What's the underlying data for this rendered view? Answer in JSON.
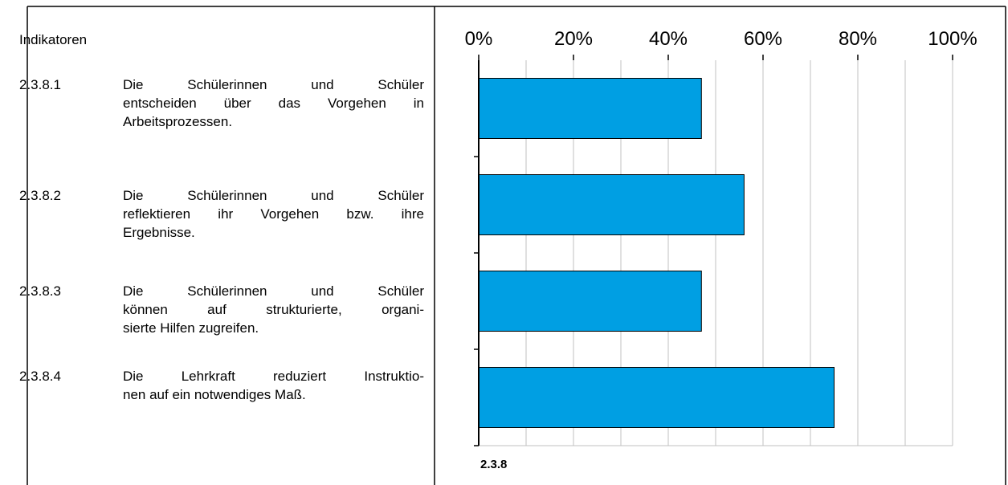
{
  "header": {
    "title": "Indikatoren"
  },
  "indicators": [
    {
      "number": "2.3.8.1",
      "lines": [
        "Die Schülerinnen und Schüler",
        "entscheiden über das Vorgehen in",
        "Arbeitsprozessen."
      ]
    },
    {
      "number": "2.3.8.2",
      "lines": [
        "Die Schülerinnen und Schüler",
        "reflektieren ihr Vorgehen bzw. ihre",
        "Ergebnisse."
      ]
    },
    {
      "number": "2.3.8.3",
      "lines": [
        "Die Schülerinnen und Schüler",
        "können auf strukturierte, organi-",
        "sierte Hilfen zugreifen."
      ]
    },
    {
      "number": "2.3.8.4",
      "lines": [
        "Die Lehrkraft reduziert Instruktio-",
        "nen auf ein notwendiges Maß."
      ]
    }
  ],
  "chart_data": {
    "type": "barh",
    "xlabel": "2.3.8",
    "categories": [
      null,
      null,
      null,
      null
    ],
    "values": [
      47,
      56,
      47,
      75
    ],
    "color": "#009fe3",
    "xlim": [
      0,
      100
    ],
    "xticks": [
      {
        "value": 0,
        "label": "0%"
      },
      {
        "value": 20,
        "label": "20%"
      },
      {
        "value": 40,
        "label": "40%"
      },
      {
        "value": 60,
        "label": "60%"
      },
      {
        "value": 80,
        "label": "80%"
      },
      {
        "value": 100,
        "label": "100%"
      }
    ],
    "xminorticks": [
      10,
      30,
      50,
      70,
      90
    ],
    "grid": true
  }
}
